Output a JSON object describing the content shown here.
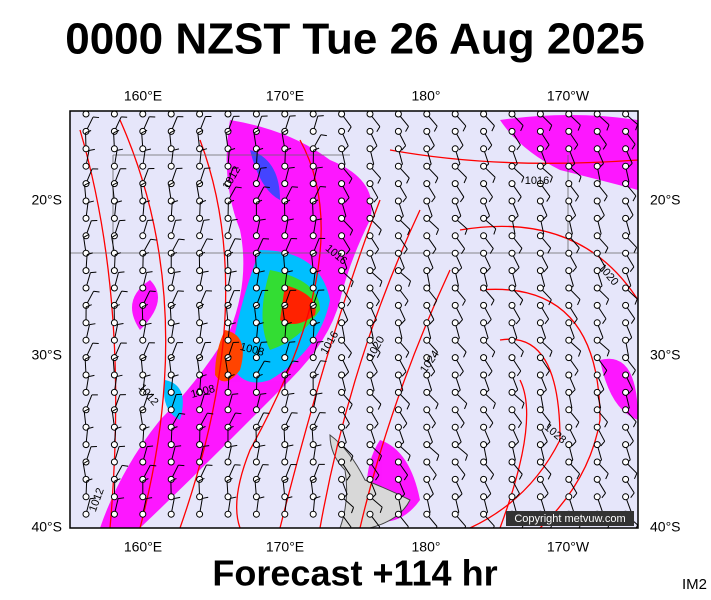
{
  "header": {
    "title": "0000 NZST Tue 26 Aug 2025"
  },
  "axes": {
    "top": [
      "160°E",
      "170°E",
      "180°",
      "170°W"
    ],
    "bottom": [
      "160°E",
      "170°E",
      "180°",
      "170°W"
    ],
    "left": [
      "20°S",
      "30°S",
      "40°S"
    ],
    "right": [
      "20°S",
      "30°S",
      "40°S"
    ]
  },
  "isobar_labels": [
    "1012",
    "1016",
    "1016",
    "1020",
    "1016",
    "1020",
    "1024",
    "1008",
    "1008",
    "1012",
    "1028",
    "1012"
  ],
  "copyright": "Copyright metvuw.com",
  "footer": {
    "forecast": "Forecast +114 hr",
    "code": "IM2"
  }
}
